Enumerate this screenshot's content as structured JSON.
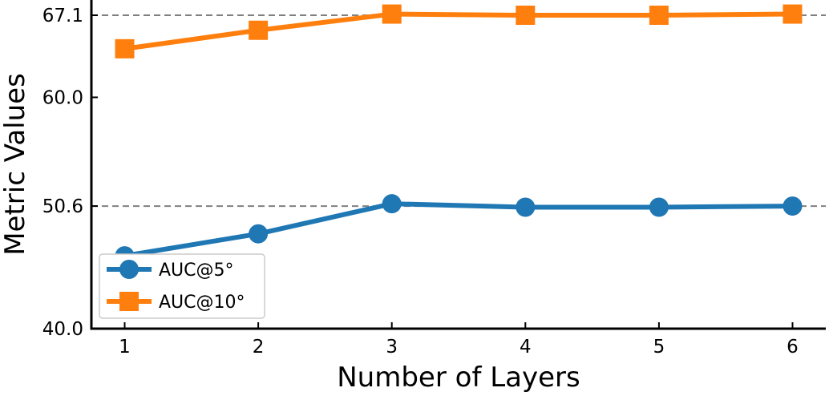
{
  "chart_data": {
    "type": "line",
    "xlabel": "Number of Layers",
    "ylabel": "Metric Values",
    "x": [
      1,
      2,
      3,
      4,
      5,
      6
    ],
    "xlim": [
      0.75,
      6.25
    ],
    "ylim": [
      40.0,
      68.0
    ],
    "y_ticks": [
      40.0,
      50.6,
      60.0,
      67.1
    ],
    "y_tick_labels": [
      "40.0",
      "50.6",
      "60.0",
      "67.1"
    ],
    "x_ticks": [
      1,
      2,
      3,
      4,
      5,
      6
    ],
    "x_tick_labels": [
      "1",
      "2",
      "3",
      "4",
      "5",
      "6"
    ],
    "reference_lines": [
      {
        "y": 67.1,
        "style": "dashed",
        "color": "#808080"
      },
      {
        "y": 50.6,
        "style": "dashed",
        "color": "#808080"
      }
    ],
    "series": [
      {
        "name": "AUC@5°",
        "marker": "circle",
        "color": "#1f77b4",
        "values": [
          46.3,
          48.2,
          50.8,
          50.5,
          50.5,
          50.6
        ]
      },
      {
        "name": "AUC@10°",
        "marker": "square",
        "color": "#ff7f0e",
        "values": [
          64.2,
          65.8,
          67.2,
          67.1,
          67.1,
          67.2
        ]
      }
    ],
    "legend_position": "lower-left",
    "grid": false
  }
}
